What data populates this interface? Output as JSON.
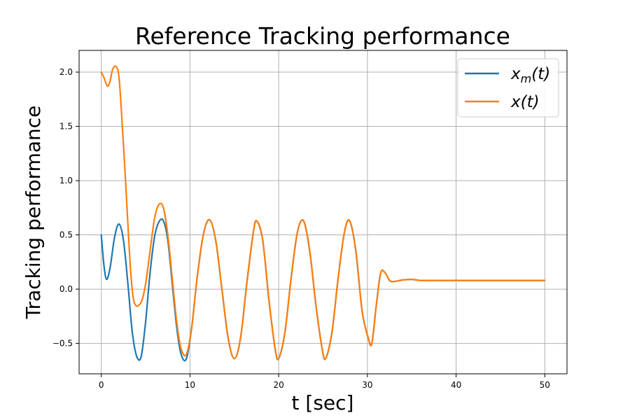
{
  "chart_data": {
    "type": "line",
    "title": "Reference Tracking performance",
    "xlabel": "t [sec]",
    "ylabel": "Tracking performance",
    "xlim": [
      -2.5,
      52.5
    ],
    "ylim": [
      -0.78,
      2.2
    ],
    "xticks": [
      0,
      10,
      20,
      30,
      40,
      50
    ],
    "xtick_labels": [
      "0",
      "10",
      "20",
      "30",
      "40",
      "50"
    ],
    "yticks": [
      -0.5,
      0.0,
      0.5,
      1.0,
      1.5,
      2.0
    ],
    "ytick_labels": [
      "−0.5",
      "0.0",
      "0.5",
      "1.0",
      "1.5",
      "2.0"
    ],
    "grid": true,
    "legend_position": "top-right",
    "series": [
      {
        "name": "x_m(t)",
        "legend_base": "x",
        "legend_sub": "m",
        "legend_rest": "(t)",
        "color": "#1f77b4",
        "x": [
          0,
          0.3,
          0.6,
          1.0,
          1.5,
          2.0,
          2.5,
          3.0,
          3.5,
          4.0,
          4.5,
          5.0,
          5.5,
          6.0,
          6.5,
          7.0,
          7.5,
          8.0,
          8.5,
          9.0,
          9.6,
          10.2,
          10.8,
          11.5,
          12.2,
          12.9,
          13.6,
          14.3,
          15.0,
          15.7,
          16.4,
          17.1,
          17.5,
          18.2,
          18.9,
          19.6,
          20.0,
          20.7,
          21.4,
          22.1,
          22.8,
          23.5,
          24.2,
          24.9,
          25.3,
          26.0,
          26.7,
          27.4,
          28.0,
          28.7,
          29.4,
          30.1,
          30.5,
          31.0,
          31.5,
          32.0,
          32.5,
          33.0,
          34.0,
          35.0,
          36.0,
          38.0,
          40.0,
          45.0,
          50.0
        ],
        "y": [
          0.5,
          0.22,
          0.09,
          0.2,
          0.48,
          0.6,
          0.45,
          0.05,
          -0.4,
          -0.62,
          -0.62,
          -0.3,
          0.15,
          0.48,
          0.62,
          0.63,
          0.45,
          0.05,
          -0.35,
          -0.6,
          -0.64,
          -0.35,
          0.1,
          0.5,
          0.64,
          0.45,
          0.0,
          -0.45,
          -0.64,
          -0.45,
          0.05,
          0.5,
          0.63,
          0.45,
          -0.1,
          -0.55,
          -0.64,
          -0.4,
          0.1,
          0.52,
          0.63,
          0.35,
          -0.15,
          -0.55,
          -0.64,
          -0.4,
          0.1,
          0.52,
          0.63,
          0.35,
          -0.2,
          -0.45,
          -0.5,
          -0.15,
          0.15,
          0.15,
          0.08,
          0.07,
          0.085,
          0.09,
          0.08,
          0.08,
          0.08,
          0.08,
          0.08
        ]
      },
      {
        "name": "x(t)",
        "legend_base": "x",
        "legend_sub": "",
        "legend_rest": "(t)",
        "color": "#ff7f0e",
        "x": [
          0,
          0.3,
          0.7,
          1.0,
          1.3,
          1.7,
          2.0,
          2.3,
          2.7,
          3.0,
          3.3,
          3.6,
          3.9,
          4.2,
          4.6,
          5.0,
          5.5,
          6.0,
          6.5,
          7.0,
          7.5,
          8.0,
          8.5,
          9.0,
          9.6,
          10.2,
          10.8,
          11.5,
          12.2,
          12.9,
          13.6,
          14.3,
          15.0,
          15.7,
          16.4,
          17.1,
          17.5,
          18.2,
          18.9,
          19.6,
          20.0,
          20.7,
          21.4,
          22.1,
          22.8,
          23.5,
          24.2,
          24.9,
          25.3,
          26.0,
          26.7,
          27.4,
          28.0,
          28.7,
          29.4,
          30.1,
          30.5,
          31.0,
          31.5,
          32.0,
          32.5,
          33.0,
          34.0,
          35.0,
          36.0,
          38.0,
          40.0,
          45.0,
          50.0
        ],
        "y": [
          2.0,
          1.95,
          1.87,
          1.92,
          2.03,
          2.05,
          1.95,
          1.6,
          1.05,
          0.6,
          0.18,
          -0.08,
          -0.15,
          -0.15,
          -0.1,
          0.05,
          0.35,
          0.65,
          0.78,
          0.75,
          0.5,
          0.1,
          -0.3,
          -0.55,
          -0.6,
          -0.35,
          0.1,
          0.5,
          0.64,
          0.45,
          0.0,
          -0.45,
          -0.64,
          -0.45,
          0.05,
          0.5,
          0.63,
          0.45,
          -0.1,
          -0.55,
          -0.64,
          -0.4,
          0.1,
          0.52,
          0.63,
          0.35,
          -0.15,
          -0.55,
          -0.64,
          -0.4,
          0.1,
          0.52,
          0.63,
          0.35,
          -0.2,
          -0.45,
          -0.5,
          -0.15,
          0.15,
          0.15,
          0.08,
          0.07,
          0.085,
          0.09,
          0.08,
          0.08,
          0.08,
          0.08,
          0.08
        ]
      }
    ]
  }
}
